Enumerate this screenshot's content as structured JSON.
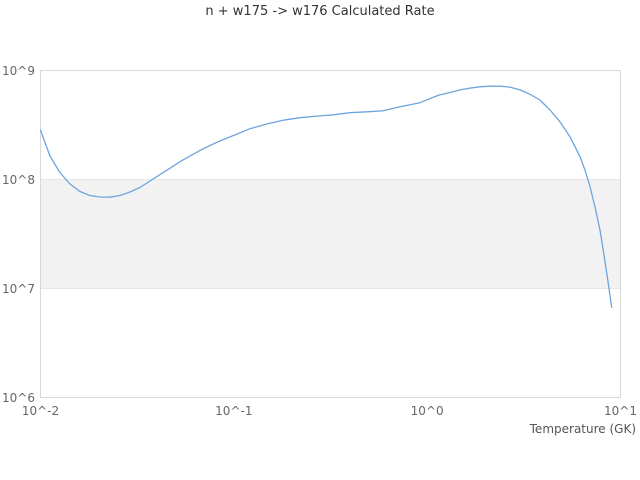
{
  "title": "n + w175 -> w176 Calculated Rate",
  "colors": {
    "line": "#6da5de",
    "band": "#f2f2f2",
    "grid": "#e6e6e6",
    "border": "#d8d8d8",
    "title_text": "#333333",
    "tick_text": "#666666",
    "axis_title_text": "#555555",
    "background": "#ffffff"
  },
  "chart_data": {
    "type": "line",
    "title": "n + w175 -> w176 Calculated Rate",
    "xlabel": "Temperature (GK)",
    "ylabel": "",
    "x_scale": "log",
    "y_scale": "log",
    "xlim": [
      0.01,
      10
    ],
    "ylim": [
      1000000,
      1000000000
    ],
    "grid": "horizontal-major-only",
    "legend": "none",
    "alternate_band_y": [
      10000000,
      100000000
    ],
    "x_ticks": [
      {
        "value": 0.01,
        "label": "10^-2"
      },
      {
        "value": 0.1,
        "label": "10^-1"
      },
      {
        "value": 1,
        "label": "10^0"
      },
      {
        "value": 10,
        "label": "10^1"
      }
    ],
    "y_ticks": [
      {
        "value": 1000000,
        "label": "10^6"
      },
      {
        "value": 10000000,
        "label": "10^7"
      },
      {
        "value": 100000000,
        "label": "10^8"
      },
      {
        "value": 1000000000,
        "label": "10^9"
      }
    ],
    "series": [
      {
        "x": [
          0.01,
          0.0112,
          0.0126,
          0.0142,
          0.016,
          0.018,
          0.0203,
          0.0229,
          0.0258,
          0.029,
          0.0327,
          0.0368,
          0.0415,
          0.0468,
          0.0527,
          0.0593,
          0.0668,
          0.0753,
          0.0848,
          0.1,
          0.121,
          0.148,
          0.18,
          0.22,
          0.269,
          0.326,
          0.399,
          0.489,
          0.591,
          0.724,
          0.918,
          1.04,
          1.16,
          1.31,
          1.48,
          1.66,
          1.87,
          2.11,
          2.38,
          2.68,
          3.02,
          3.4,
          3.83,
          4.32,
          4.86,
          5.48,
          6.17,
          6.55,
          6.95,
          7.38,
          7.84,
          8.25,
          8.65,
          9.0
        ],
        "y": [
          284000000.0,
          164000000.0,
          116000000.0,
          91000000.0,
          77600000.0,
          71300000.0,
          69100000.0,
          68800000.0,
          71300000.0,
          76800000.0,
          84500000.0,
          96900000.0,
          111000000.0,
          127000000.0,
          146000000.0,
          164000000.0,
          185000000.0,
          205000000.0,
          226000000.0,
          254000000.0,
          292000000.0,
          323000000.0,
          350000000.0,
          369000000.0,
          382000000.0,
          392000000.0,
          410000000.0,
          418000000.0,
          427000000.0,
          465000000.0,
          506000000.0,
          555000000.0,
          597000000.0,
          627000000.0,
          664000000.0,
          688000000.0,
          708000000.0,
          718000000.0,
          718000000.0,
          704000000.0,
          664000000.0,
          606000000.0,
          536000000.0,
          434000000.0,
          339000000.0,
          247000000.0,
          162000000.0,
          122000000.0,
          86000000.0,
          56000000.0,
          34000000.0,
          19500000.0,
          11100000.0,
          6700000.0
        ]
      }
    ]
  }
}
